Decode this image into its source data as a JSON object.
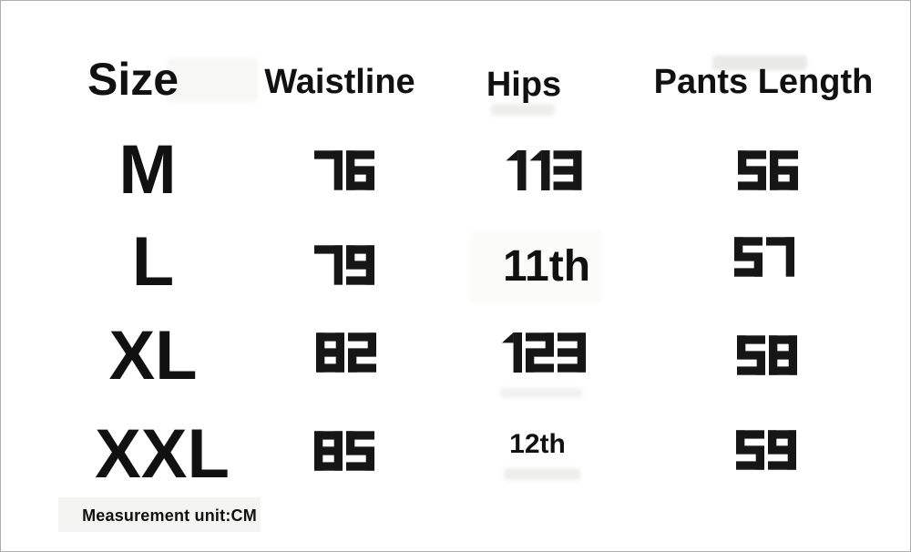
{
  "chart_data": {
    "type": "table",
    "columns": [
      "Size",
      "Waistline",
      "Hips",
      "Pants Length"
    ],
    "rows": [
      [
        "M",
        "76",
        "113",
        "56"
      ],
      [
        "L",
        "79",
        "11th",
        "57"
      ],
      [
        "XL",
        "82",
        "123",
        "58"
      ],
      [
        "XXL",
        "85",
        "12th",
        "59"
      ]
    ],
    "note": "Measurement unit:CM",
    "unit": "CM"
  },
  "colors": {
    "text": "#111111",
    "digit": "#161616",
    "background": "#ffffff",
    "border": "#adadad",
    "artifact": "#f2f2f0"
  }
}
